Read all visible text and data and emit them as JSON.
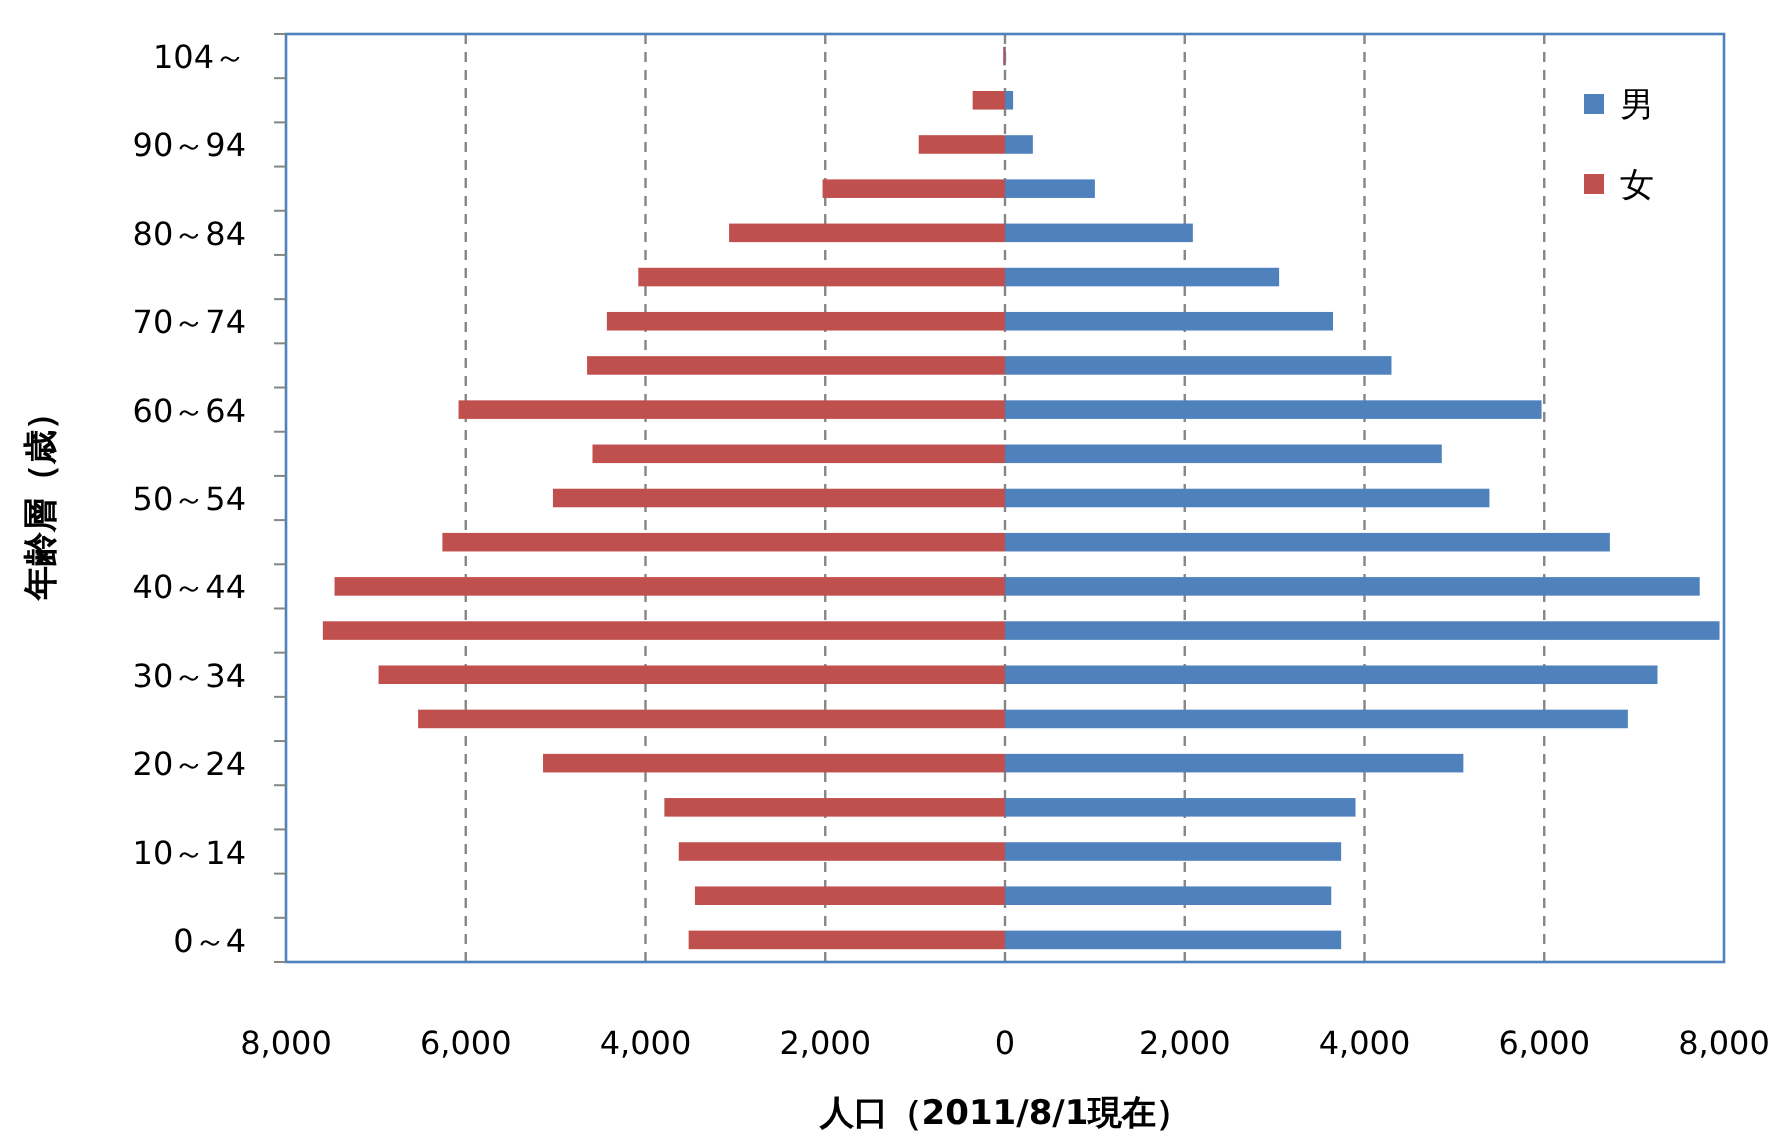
{
  "chart_data": {
    "type": "bar",
    "orientation": "horizontal",
    "xlabel": "人口（2011/8/1現在）",
    "ylabel": "年齢層（歳）",
    "categories": [
      "104～",
      null,
      "90～94",
      null,
      "80～84",
      null,
      "70～74",
      null,
      "60～64",
      null,
      "50～54",
      null,
      "40～44",
      null,
      "30～34",
      null,
      "20～24",
      null,
      "10～14",
      null,
      "0～4"
    ],
    "series": [
      {
        "name": "男",
        "color": "#4f81bd",
        "values": [
          10,
          90,
          310,
          1000,
          2090,
          3050,
          3650,
          4300,
          5970,
          4860,
          5390,
          6730,
          7730,
          7950,
          7260,
          6930,
          5100,
          3900,
          3740,
          3630,
          3740
        ]
      },
      {
        "name": "女",
        "color": "#c0504d",
        "values": [
          -20,
          -360,
          -960,
          -2030,
          -3070,
          -4080,
          -4430,
          -4650,
          -6080,
          -4590,
          -5030,
          -6260,
          -7460,
          -7590,
          -6970,
          -6530,
          -5140,
          -3790,
          -3630,
          -3450,
          -3520
        ]
      }
    ],
    "xlim": [
      -8000,
      8000
    ],
    "xticks": [
      {
        "value": -8000,
        "label": "8,000"
      },
      {
        "value": -6000,
        "label": "6,000"
      },
      {
        "value": -4000,
        "label": "4,000"
      },
      {
        "value": -2000,
        "label": "2,000"
      },
      0,
      {
        "value": 2000,
        "label": "2,000"
      },
      {
        "value": 4000,
        "label": "4,000"
      },
      {
        "value": 6000,
        "label": "6,000"
      },
      {
        "value": 8000,
        "label": "8,000"
      }
    ],
    "grid": "x",
    "legend": "top right",
    "stacked": true
  }
}
